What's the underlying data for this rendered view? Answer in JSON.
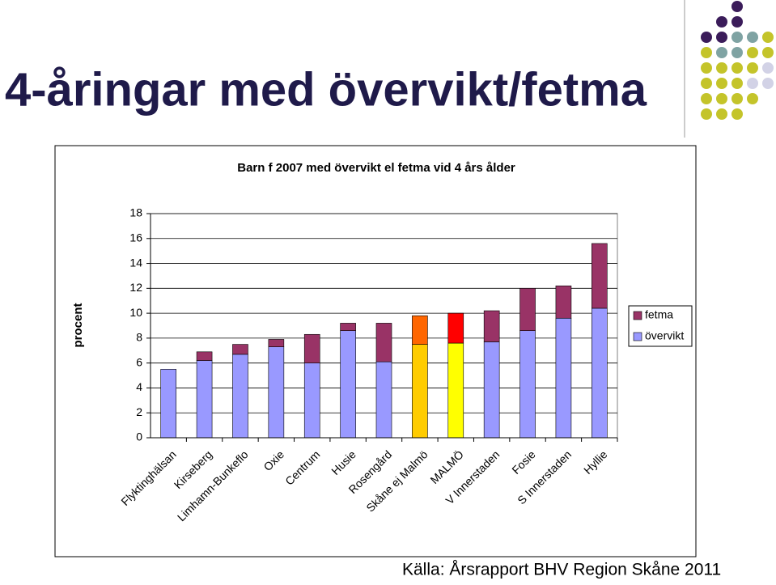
{
  "slide_title": "4-åringar med övervikt/fetma",
  "source": "Källa: Årsrapport BHV Region Skåne 2011",
  "chart_data": {
    "type": "stacked_bar",
    "title": "Barn f 2007 med övervikt el fetma vid 4 års ålder",
    "y_label": "procent",
    "categories": [
      "Flyktinghälsan",
      "Kirseberg",
      "Limhamn-Bunkeflo",
      "Oxie",
      "Centrum",
      "Husie",
      "Rosengård",
      "Skåne ej Malmö",
      "MALMÖ",
      "V Innerstaden",
      "Fosie",
      "S Innerstaden",
      "Hyllie"
    ],
    "series": [
      {
        "name": "övervikt",
        "color": "#9999ff",
        "colors": [
          "#9999ff",
          "#9999ff",
          "#9999ff",
          "#9999ff",
          "#9999ff",
          "#9999ff",
          "#9999ff",
          "#ffcc00",
          "#ffff00",
          "#9999ff",
          "#9999ff",
          "#9999ff",
          "#9999ff"
        ],
        "values": [
          5.5,
          6.2,
          6.7,
          7.3,
          6.0,
          8.6,
          6.1,
          7.5,
          7.6,
          7.7,
          8.6,
          9.6,
          10.4
        ]
      },
      {
        "name": "fetma",
        "color": "#993366",
        "colors": [
          "#993366",
          "#993366",
          "#993366",
          "#993366",
          "#993366",
          "#993366",
          "#993366",
          "#ff6600",
          "#ff0000",
          "#993366",
          "#993366",
          "#993366",
          "#993366"
        ],
        "values": [
          0,
          0.7,
          0.8,
          0.6,
          2.3,
          0.6,
          3.1,
          2.3,
          2.4,
          2.5,
          3.4,
          2.6,
          5.2
        ]
      }
    ],
    "ylim": [
      0,
      18
    ],
    "yticks": [
      0,
      2,
      4,
      6,
      8,
      10,
      12,
      14,
      16,
      18
    ],
    "grid": true,
    "legend": "right"
  }
}
